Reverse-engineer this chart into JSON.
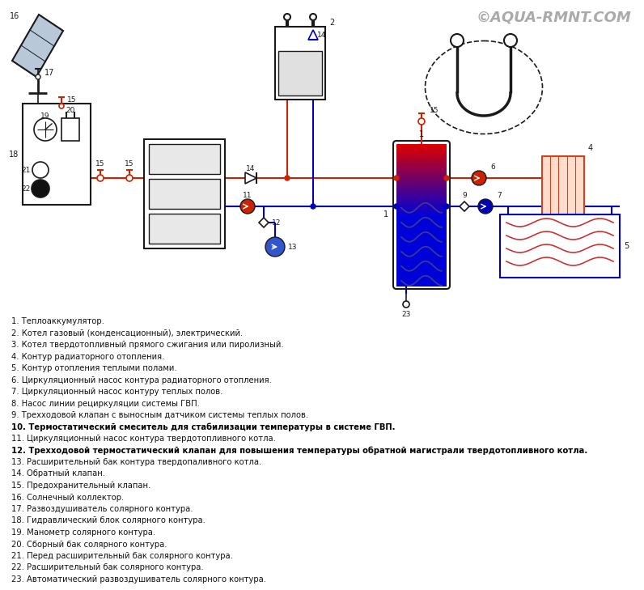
{
  "title": "©AQUA-RMNT.COM",
  "bg_color": "#ffffff",
  "dark": "#1a1a1a",
  "red": "#cc2200",
  "blue": "#0000bb",
  "gray": "#808080",
  "lgray": "#cccccc",
  "legend": [
    "1. Теплоаккумулятор.",
    "2. Котел газовый (конденсационный), электрический.",
    "3. Котел твердотопливный прямого сжигания или пиролизный.",
    "4. Контур радиаторного отопления.",
    "5. Контур отопления теплыми полами.",
    "6. Циркуляционный насос контура радиаторного отопления.",
    "7. Циркуляционный насос контуру теплых полов.",
    "8. Насос линии рециркуляции системы ГВП.",
    "9. Трехходовой клапан с выносным датчиком системы теплых полов.",
    "10. Термостатический смеситель для стабилизации температуры в системе ГВП.",
    "11. Циркуляционный насос контура твердотопливного котла.",
    "12. Трехходовой термостатический клапан для повышения температуры обратной магистрали твердотопливного котла.",
    "13. Расширительный бак контура твердопаливного котла.",
    "14. Обратный клапан.",
    "15. Предохранительный клапан.",
    "16. Солнечный коллектор.",
    "17. Развоздушиватель солярного контура.",
    "18. Гидравлический блок солярного контура.",
    "19. Манометр солярного контура.",
    "20. Сборный бак солярного контура.",
    "21. Перед расширительный бак солярного контура.",
    "22. Расширительный бак солярного контура.",
    "23. Автоматический развоздушиватель солярного контура."
  ]
}
